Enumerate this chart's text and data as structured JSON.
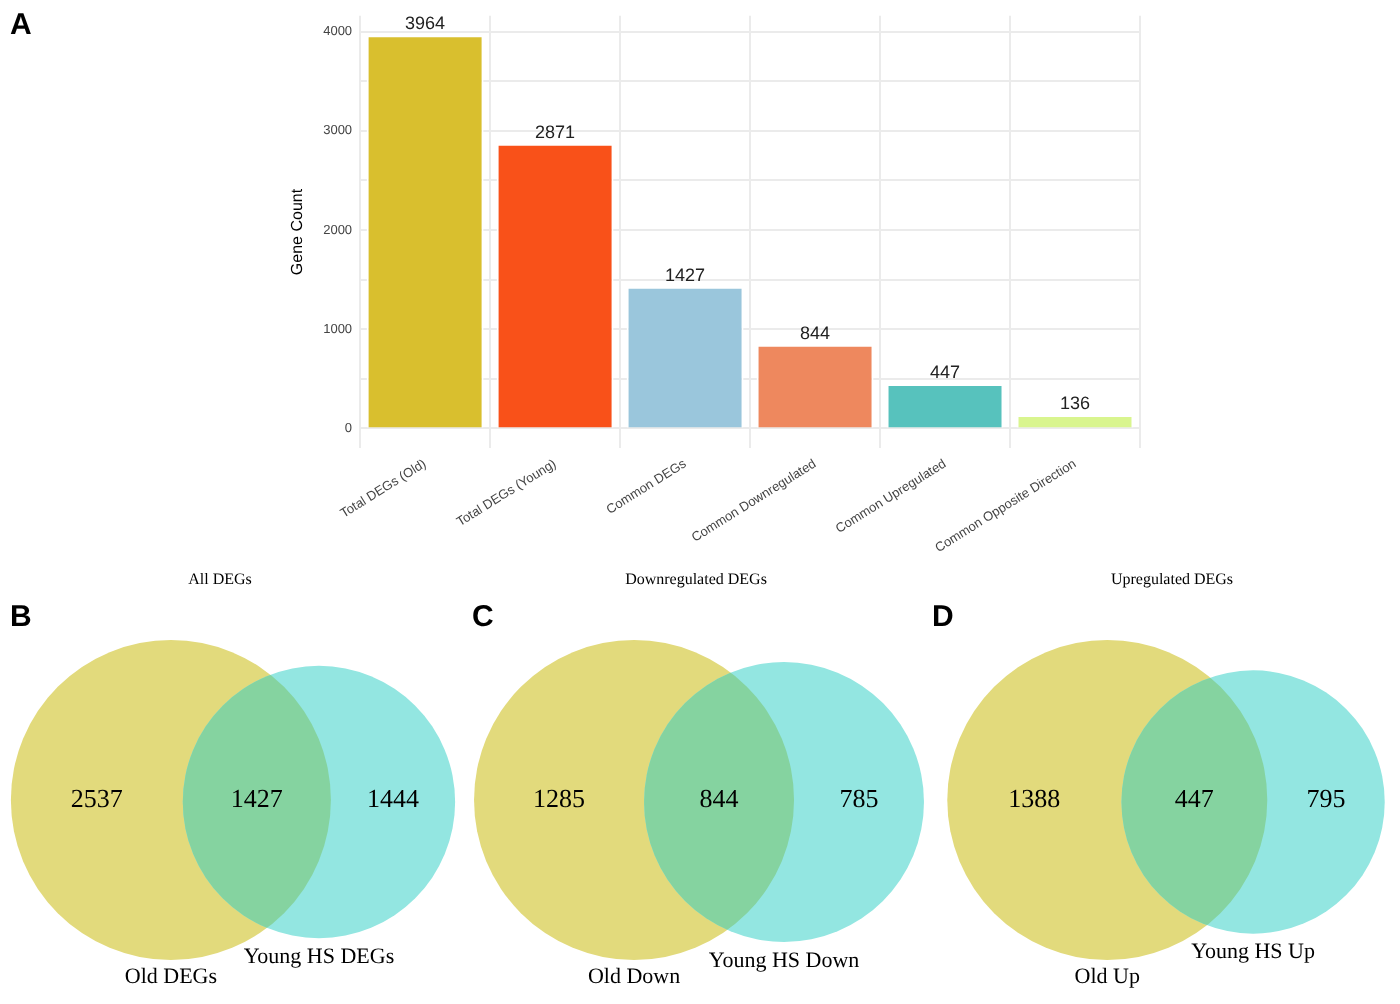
{
  "chart_data": [
    {
      "type": "bar",
      "annotations": [
        "A"
      ],
      "ylabel": "Gene Count",
      "categories": [
        "Total DEGs (Old)",
        "Total DEGs (Young)",
        "Common DEGs",
        "Common Downregulated",
        "Common Upregulated",
        "Common Opposite Direction"
      ],
      "values": [
        3964,
        2871,
        1427,
        844,
        447,
        136
      ],
      "colors": [
        "#d9bf2e",
        "#f95119",
        "#9ac6dc",
        "#ee885e",
        "#57c2bd",
        "#d9f58f"
      ],
      "ylim": [
        -200,
        4160
      ],
      "yticks": [
        0,
        {
          "value": 500,
          "label": null
        },
        1000,
        {
          "value": 1500,
          "label": null
        },
        2000,
        {
          "value": 2500,
          "label": null
        },
        3000,
        {
          "value": 3500,
          "label": null
        },
        4000
      ],
      "grid": true,
      "data_labels": true
    },
    {
      "type": "other",
      "title": "All DEGs",
      "annotations": [
        "B"
      ],
      "categories": [
        "Old DEGs",
        null,
        "Young HS DEGs"
      ],
      "values": [
        2537,
        1427,
        1444
      ],
      "colors": [
        "#e2da7c",
        "#85d3a0",
        "#93e6e1"
      ],
      "data_labels": true
    },
    {
      "type": "other",
      "title": "Downregulated DEGs",
      "annotations": [
        "C"
      ],
      "categories": [
        "Old Down",
        null,
        "Young HS Down"
      ],
      "values": [
        1285,
        844,
        785
      ],
      "colors": [
        "#e2da7c",
        "#85d3a0",
        "#93e6e1"
      ],
      "data_labels": true
    },
    {
      "type": "other",
      "title": "Upregulated DEGs",
      "annotations": [
        "D"
      ],
      "categories": [
        "Old Up",
        null,
        "Young HS Up"
      ],
      "values": [
        1388,
        447,
        795
      ],
      "colors": [
        "#e2da7c",
        "#85d3a0",
        "#93e6e1"
      ],
      "data_labels": true
    }
  ]
}
